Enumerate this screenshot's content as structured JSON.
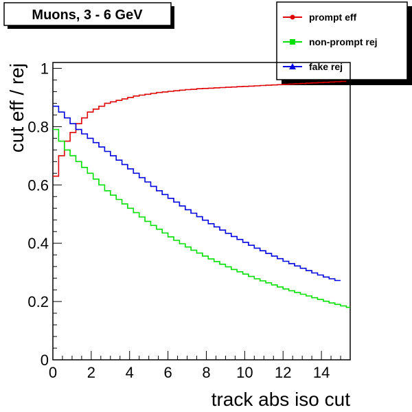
{
  "chart_data": {
    "type": "line",
    "title": "Muons, 3 - 6 GeV",
    "xlabel": "track abs iso cut",
    "ylabel": "cut eff / rej",
    "xlim": [
      0,
      15.5
    ],
    "ylim": [
      0,
      1.02
    ],
    "bin_width": 0.3,
    "x_ticks": [
      "0",
      "2",
      "4",
      "6",
      "8",
      "10",
      "12",
      "14"
    ],
    "y_ticks": [
      "0",
      "0.2",
      "0.4",
      "0.6",
      "0.8",
      "1"
    ],
    "legend_position": "top-right",
    "series": [
      {
        "name": "prompt eff",
        "color": "#e00000",
        "marker": "circle",
        "values": [
          0.63,
          0.7,
          0.75,
          0.78,
          0.81,
          0.83,
          0.85,
          0.86,
          0.87,
          0.88,
          0.885,
          0.89,
          0.895,
          0.9,
          0.905,
          0.908,
          0.911,
          0.914,
          0.917,
          0.919,
          0.921,
          0.923,
          0.925,
          0.927,
          0.928,
          0.93,
          0.931,
          0.932,
          0.933,
          0.934,
          0.935,
          0.936,
          0.937,
          0.938,
          0.939,
          0.94,
          0.941,
          0.942,
          0.943,
          0.944,
          0.945,
          0.946,
          0.947,
          0.948,
          0.949,
          0.95,
          0.951,
          0.952,
          0.953,
          0.954,
          0.955
        ]
      },
      {
        "name": "non-prompt rej",
        "color": "#00e000",
        "marker": "square",
        "values": [
          0.79,
          0.75,
          0.72,
          0.7,
          0.68,
          0.66,
          0.64,
          0.62,
          0.6,
          0.58,
          0.565,
          0.55,
          0.535,
          0.52,
          0.505,
          0.49,
          0.475,
          0.461,
          0.448,
          0.435,
          0.422,
          0.41,
          0.398,
          0.387,
          0.376,
          0.366,
          0.356,
          0.346,
          0.337,
          0.328,
          0.319,
          0.31,
          0.302,
          0.294,
          0.286,
          0.278,
          0.271,
          0.264,
          0.257,
          0.25,
          0.243,
          0.237,
          0.231,
          0.225,
          0.219,
          0.213,
          0.207,
          0.201,
          0.195,
          0.19,
          0.185,
          0.18,
          0.175,
          0.17
        ]
      },
      {
        "name": "fake rej",
        "color": "#0000e0",
        "marker": "triangle",
        "values": [
          0.87,
          0.85,
          0.83,
          0.81,
          0.79,
          0.775,
          0.76,
          0.745,
          0.73,
          0.715,
          0.7,
          0.685,
          0.67,
          0.655,
          0.64,
          0.625,
          0.61,
          0.595,
          0.58,
          0.567,
          0.554,
          0.541,
          0.528,
          0.515,
          0.503,
          0.491,
          0.479,
          0.467,
          0.456,
          0.445,
          0.434,
          0.423,
          0.413,
          0.403,
          0.393,
          0.383,
          0.374,
          0.365,
          0.356,
          0.347,
          0.338,
          0.33,
          0.322,
          0.314,
          0.306,
          0.298,
          0.291,
          0.284,
          0.278,
          0.272
        ]
      }
    ]
  }
}
